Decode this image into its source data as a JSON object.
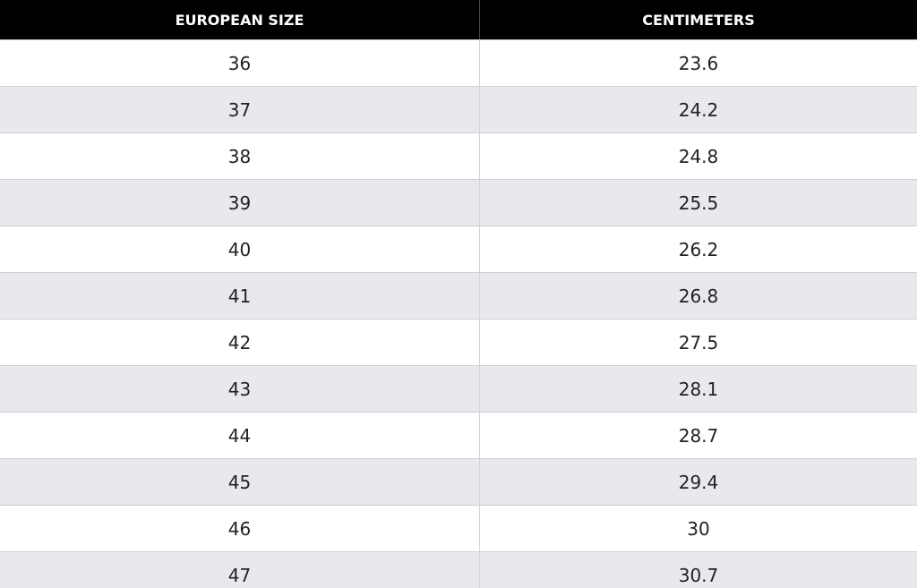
{
  "table": {
    "headers": [
      "EUROPEAN SIZE",
      "CENTIMETERS"
    ],
    "rows": [
      [
        "36",
        "23.6"
      ],
      [
        "37",
        "24.2"
      ],
      [
        "38",
        "24.8"
      ],
      [
        "39",
        "25.5"
      ],
      [
        "40",
        "26.2"
      ],
      [
        "41",
        "26.8"
      ],
      [
        "42",
        "27.5"
      ],
      [
        "43",
        "28.1"
      ],
      [
        "44",
        "28.7"
      ],
      [
        "45",
        "29.4"
      ],
      [
        "46",
        "30"
      ],
      [
        "47",
        "30.7"
      ]
    ]
  }
}
